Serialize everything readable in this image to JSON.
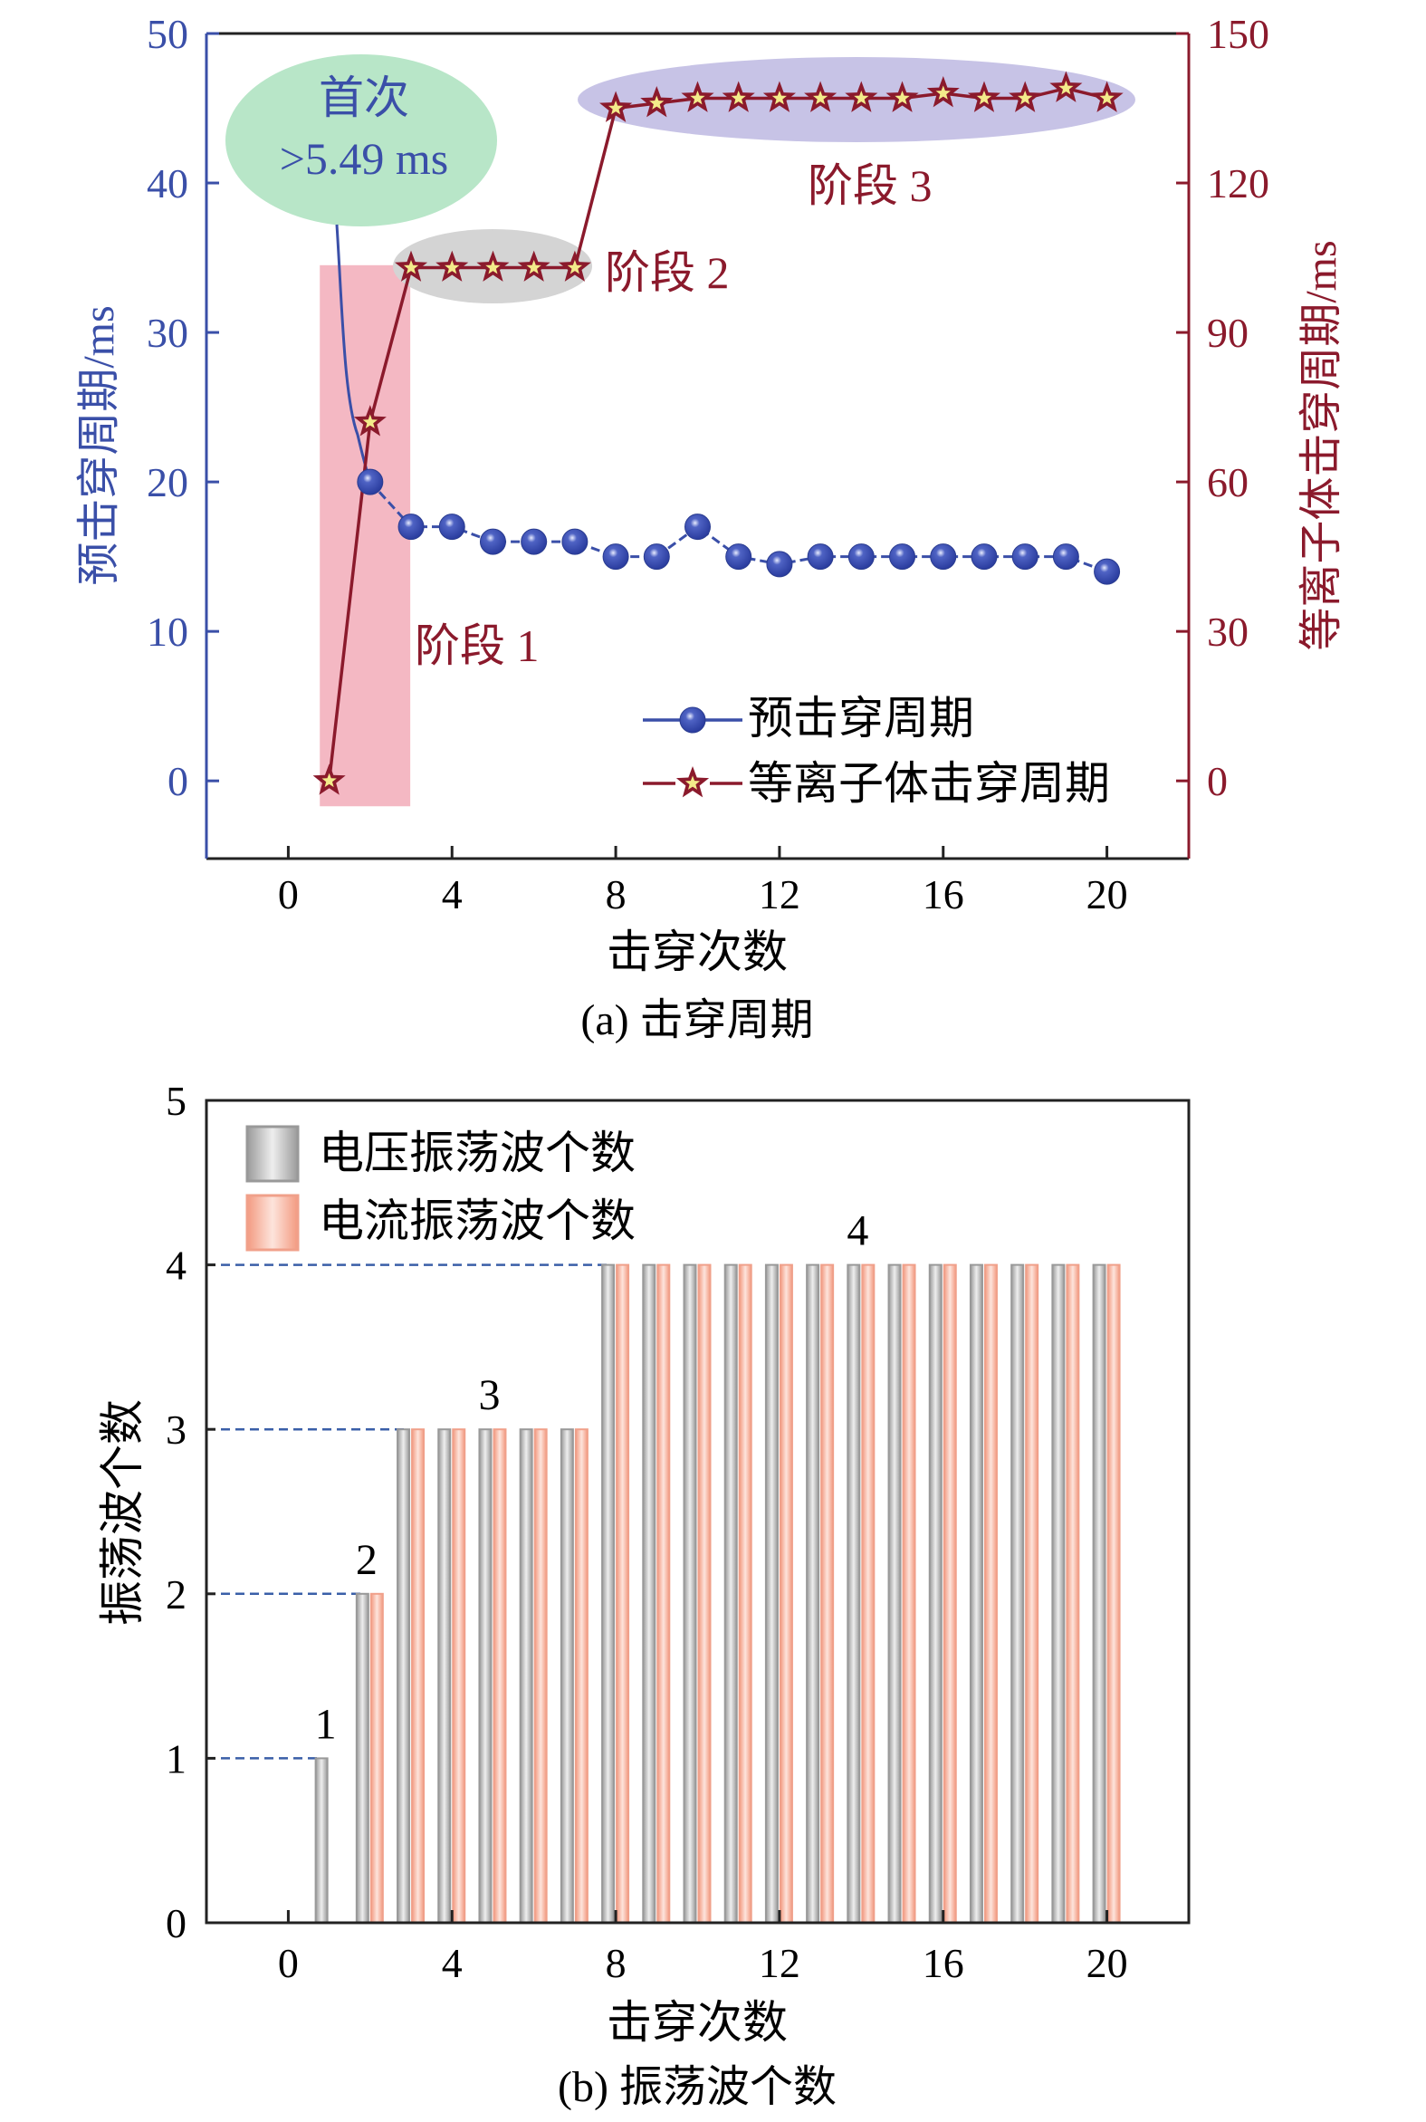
{
  "colors": {
    "blue": "#3a4fa8",
    "red": "#8b1a2c",
    "star_fill": "#f3eb8a",
    "pink": "#f4b8c3",
    "green": "#b8e6c8",
    "gray_ellipse": "#d4d4d4",
    "purple": "#c7c3e6",
    "bar_gray": "#a8a8a8",
    "bar_orange": "#f4a48c",
    "dash": "#3a5fa8"
  },
  "chart_data": [
    {
      "type": "line",
      "caption": "(a) 击穿周期",
      "xlabel": "击穿次数",
      "ylabel_left": "预击穿周期/ms",
      "ylabel_right": "等离子体击穿周期/ms",
      "xlim": [
        -2,
        22
      ],
      "ylim_left": [
        -5.2,
        50
      ],
      "ylim_right": [
        -15.6,
        150
      ],
      "xticks": [
        0,
        4,
        8,
        12,
        16,
        20
      ],
      "yticks_left": [
        0,
        10,
        20,
        30,
        40,
        50
      ],
      "yticks_right": [
        0,
        30,
        60,
        90,
        120,
        150
      ],
      "series": [
        {
          "name": "预击穿周期",
          "axis": "left",
          "marker": "circle",
          "x": [
            2,
            3,
            4,
            5,
            6,
            7,
            8,
            9,
            10,
            11,
            12,
            13,
            14,
            15,
            16,
            17,
            18,
            19,
            20
          ],
          "values": [
            20,
            17,
            17,
            16,
            16,
            16,
            15,
            15,
            17,
            15,
            14.5,
            15,
            15,
            15,
            15,
            15,
            15,
            15,
            14
          ]
        },
        {
          "name": "等离子体击穿周期",
          "axis": "right",
          "marker": "star",
          "x": [
            1,
            2,
            3,
            4,
            5,
            6,
            7,
            8,
            9,
            10,
            11,
            12,
            13,
            14,
            15,
            16,
            17,
            18,
            19,
            20
          ],
          "values": [
            0,
            72,
            103,
            103,
            103,
            103,
            103,
            135,
            136,
            137,
            137,
            137,
            137,
            137,
            137,
            138,
            137,
            137,
            139,
            137
          ]
        }
      ],
      "annotations": {
        "first_line1": "首次",
        "first_line2": ">5.49 ms",
        "stage1": "阶段 1",
        "stage2": "阶段 2",
        "stage3": "阶段 3"
      },
      "legend_position": "bottom-right"
    },
    {
      "type": "bar",
      "caption": "(b) 振荡波个数",
      "xlabel": "击穿次数",
      "ylabel": "振荡波个数",
      "xlim": [
        -2,
        22
      ],
      "ylim": [
        0,
        5
      ],
      "xticks": [
        0,
        4,
        8,
        12,
        16,
        20
      ],
      "yticks": [
        0,
        1,
        2,
        3,
        4,
        5
      ],
      "x": [
        1,
        2,
        3,
        4,
        5,
        6,
        7,
        8,
        9,
        10,
        11,
        12,
        13,
        14,
        15,
        16,
        17,
        18,
        19,
        20
      ],
      "series": [
        {
          "name": "电压振荡波个数",
          "values": [
            1,
            2,
            3,
            3,
            3,
            3,
            3,
            4,
            4,
            4,
            4,
            4,
            4,
            4,
            4,
            4,
            4,
            4,
            4,
            4
          ]
        },
        {
          "name": "电流振荡波个数",
          "values": [
            0,
            2,
            3,
            3,
            3,
            3,
            3,
            4,
            4,
            4,
            4,
            4,
            4,
            4,
            4,
            4,
            4,
            4,
            4,
            4
          ]
        }
      ],
      "level_labels": [
        {
          "x": 1,
          "y": 1,
          "text": "1"
        },
        {
          "x": 2,
          "y": 2,
          "text": "2"
        },
        {
          "x": 5,
          "y": 3,
          "text": "3"
        },
        {
          "x": 14,
          "y": 4,
          "text": "4"
        }
      ],
      "legend_position": "top-left"
    }
  ]
}
